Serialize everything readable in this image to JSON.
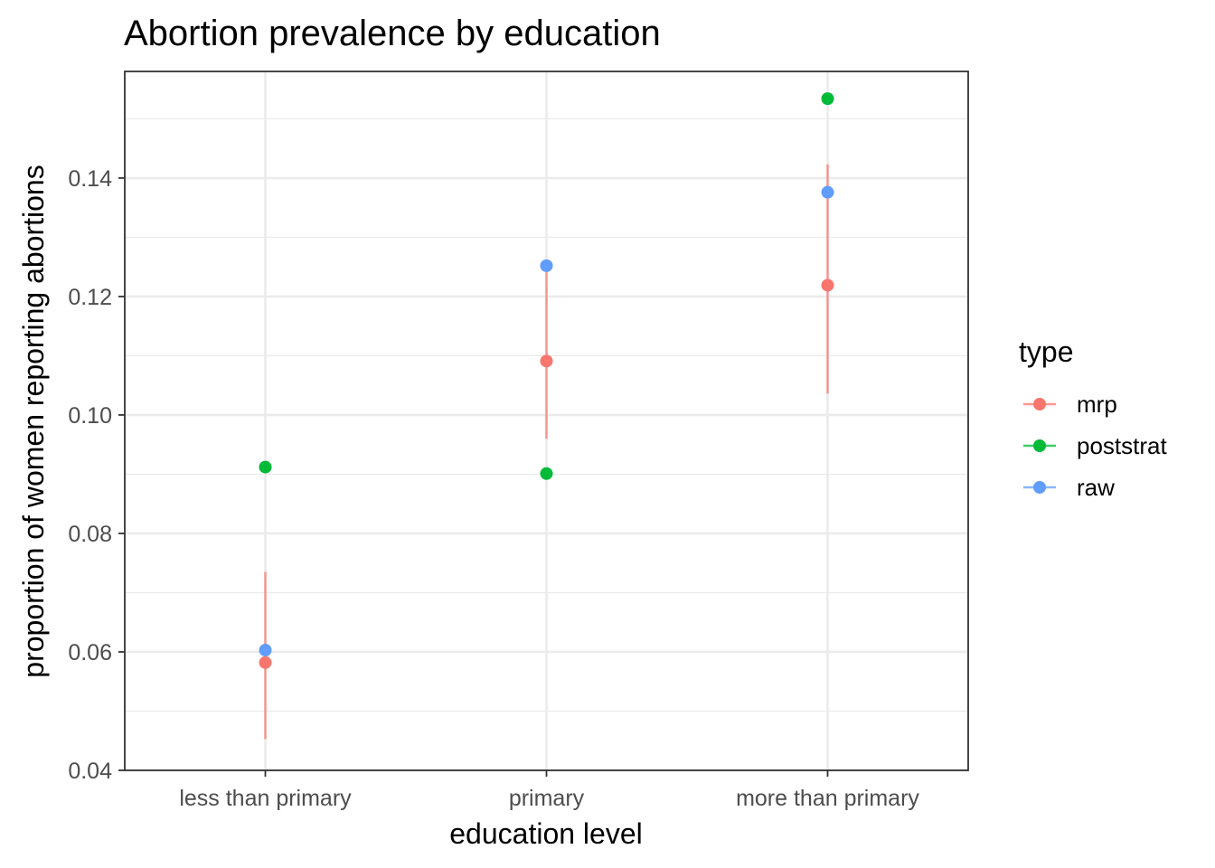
{
  "chart_data": {
    "type": "scatter",
    "title": "Abortion prevalence by education",
    "xlabel": "education level",
    "ylabel": "proportion of women reporting abortions",
    "categories": [
      "less than primary",
      "primary",
      "more than primary"
    ],
    "ylim": [
      0.04,
      0.158
    ],
    "yticks": [
      "0.04",
      "0.06",
      "0.08",
      "0.10",
      "0.12",
      "0.14"
    ],
    "grid": true,
    "legend": {
      "title": "type",
      "position": "right",
      "items": [
        "mrp",
        "poststrat",
        "raw"
      ]
    },
    "series": [
      {
        "name": "mrp",
        "color": "#F8766D",
        "values": [
          0.0582,
          0.1091,
          0.1219
        ],
        "error_low": [
          0.0453,
          0.096,
          0.1036
        ],
        "error_high": [
          0.0735,
          0.1253,
          0.1423
        ]
      },
      {
        "name": "poststrat",
        "color": "#00BA38",
        "values": [
          0.0912,
          0.0901,
          0.1534
        ]
      },
      {
        "name": "raw",
        "color": "#619CFF",
        "values": [
          0.0603,
          0.1252,
          0.1376
        ]
      }
    ]
  }
}
